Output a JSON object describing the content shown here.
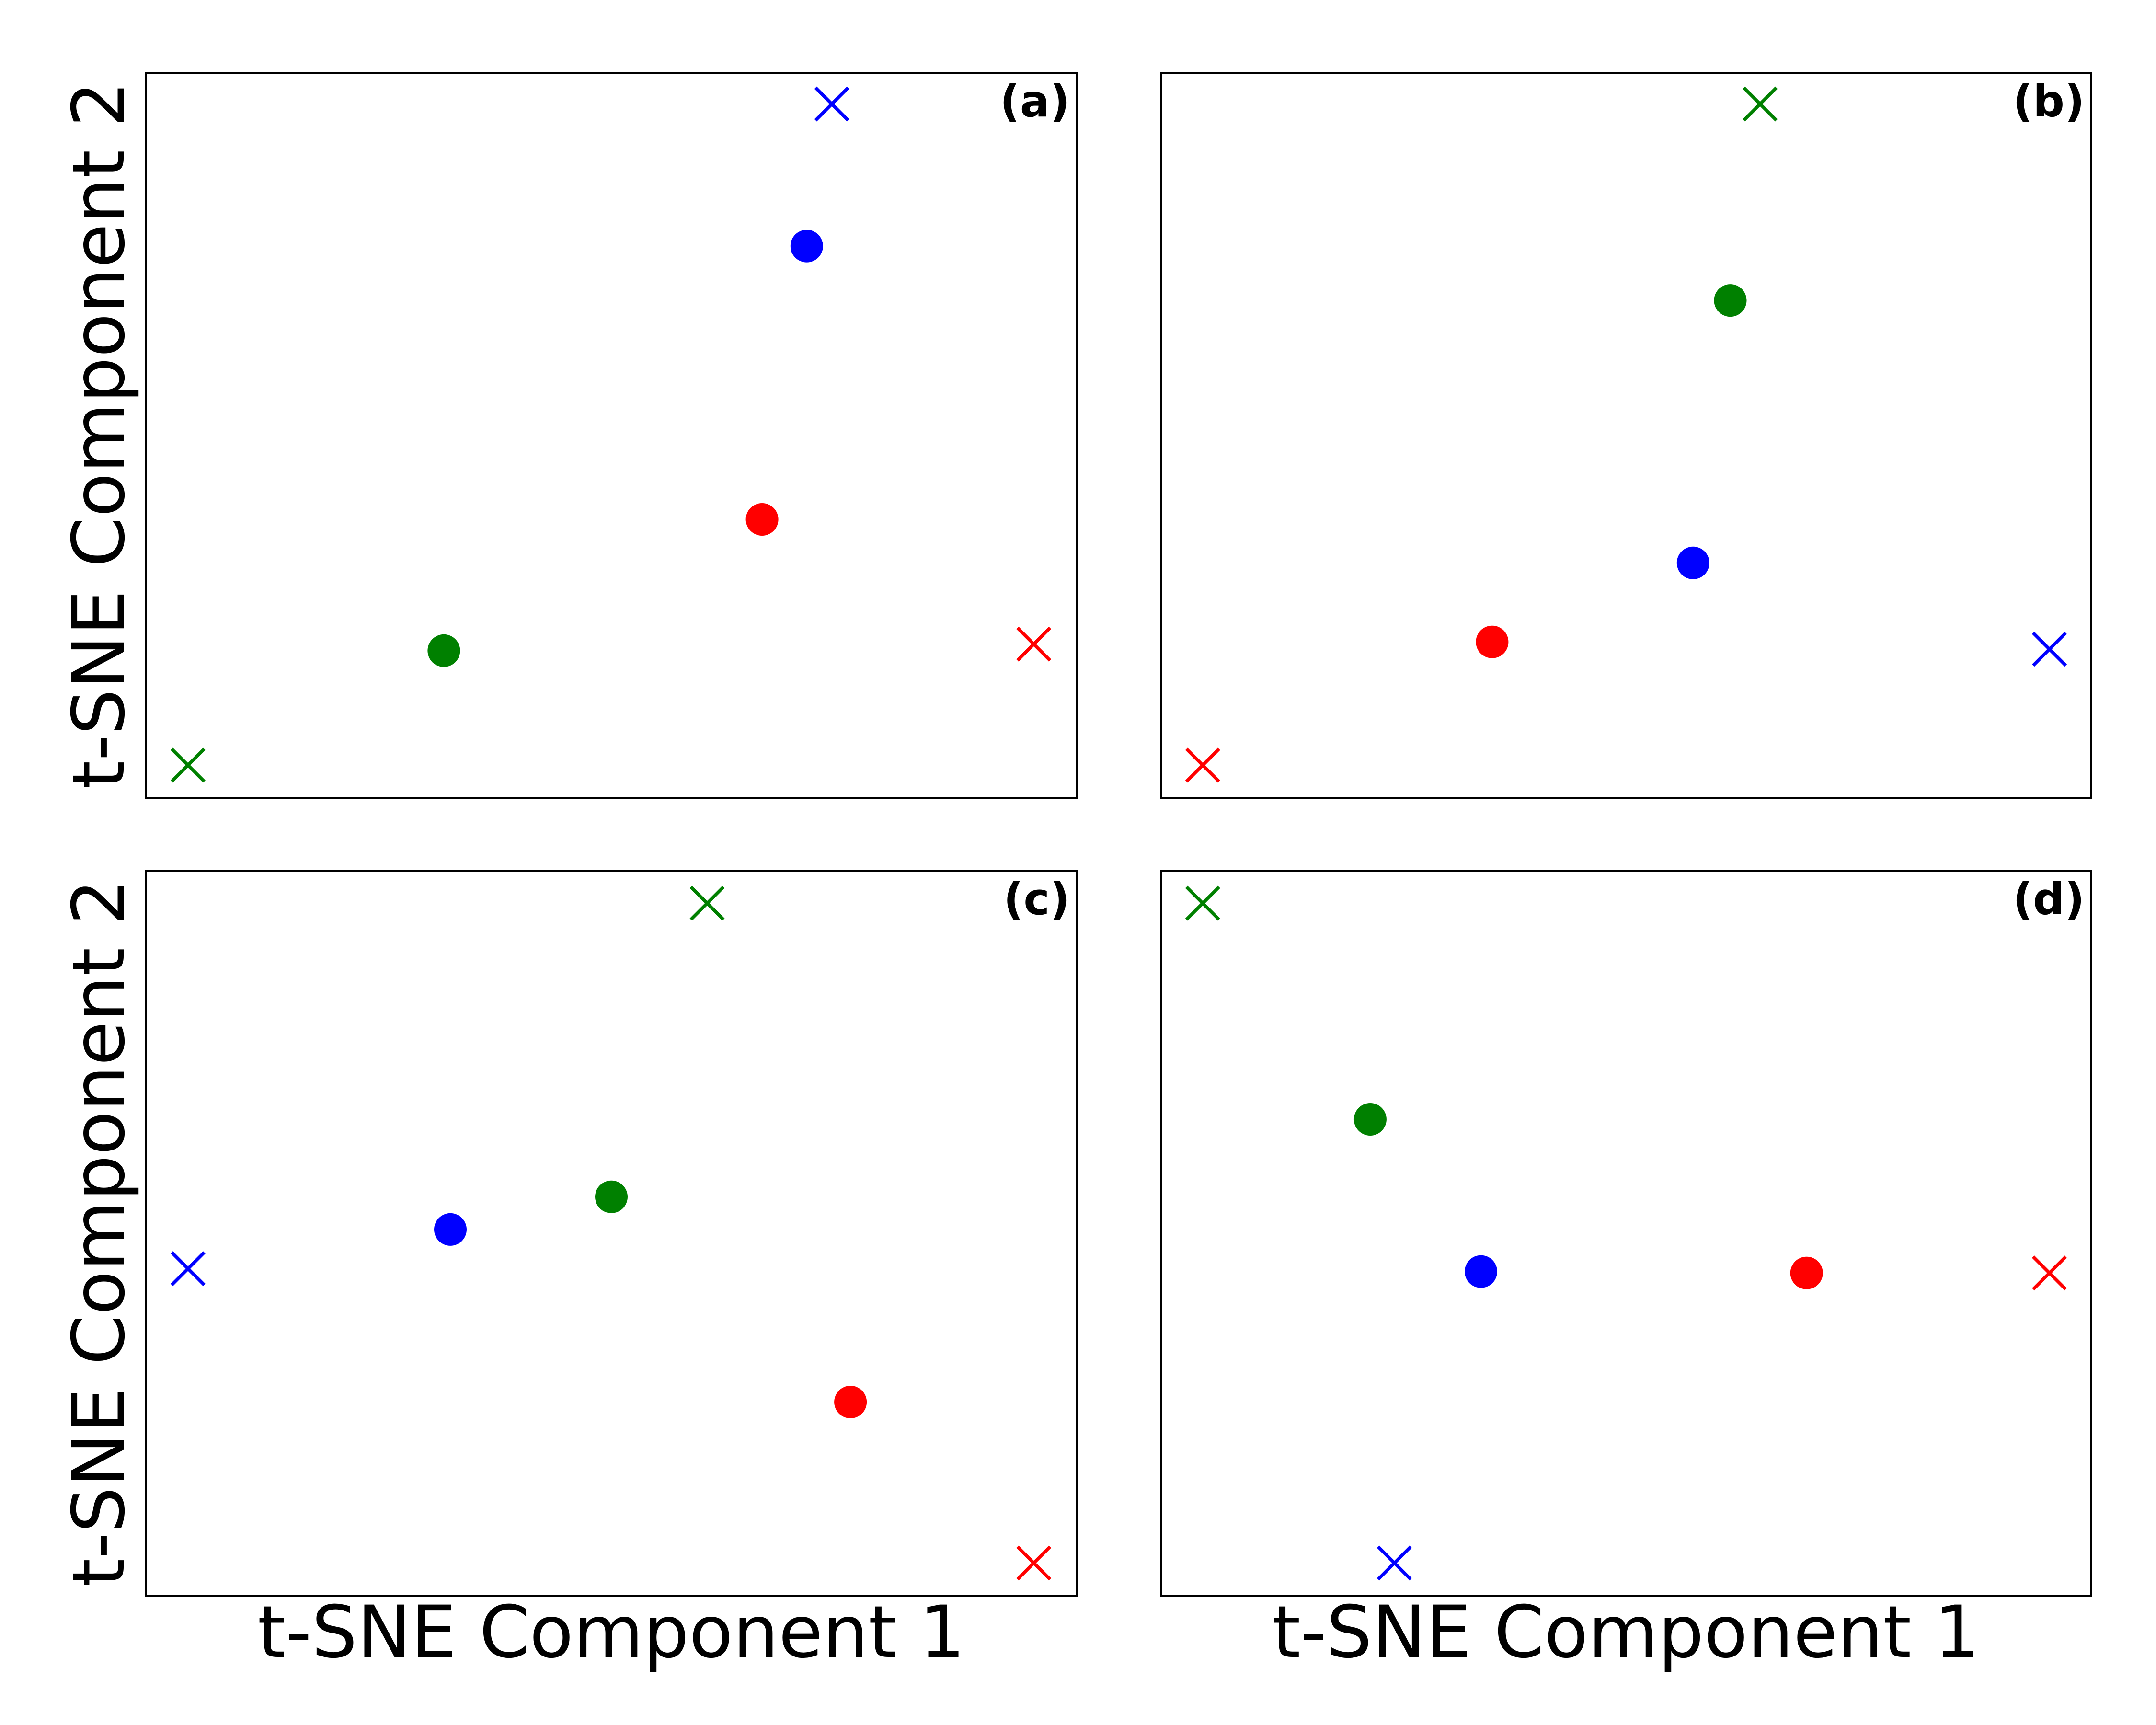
{
  "figure": {
    "ylabel": "t-SNE Component 2",
    "xlabel": "t-SNE Component 1"
  },
  "chart_data": [
    {
      "type": "scatter",
      "panel_label": "(a)",
      "xlabel": "",
      "ylabel": "t-SNE Component 2",
      "xlim": [
        0,
        1
      ],
      "ylim": [
        0,
        1
      ],
      "grid": false,
      "xticks": false,
      "yticks": false,
      "points": [
        {
          "marker": "x",
          "color": "#0000ff",
          "x": 0.737,
          "y": 0.957
        },
        {
          "marker": "circle",
          "color": "#0000ff",
          "x": 0.71,
          "y": 0.761
        },
        {
          "marker": "circle",
          "color": "#ff0000",
          "x": 0.662,
          "y": 0.384
        },
        {
          "marker": "x",
          "color": "#ff0000",
          "x": 0.954,
          "y": 0.212
        },
        {
          "marker": "circle",
          "color": "#008000",
          "x": 0.32,
          "y": 0.203
        },
        {
          "marker": "x",
          "color": "#008000",
          "x": 0.045,
          "y": 0.045
        }
      ]
    },
    {
      "type": "scatter",
      "panel_label": "(b)",
      "xlabel": "",
      "ylabel": "",
      "xlim": [
        0,
        1
      ],
      "ylim": [
        0,
        1
      ],
      "grid": false,
      "xticks": false,
      "yticks": false,
      "points": [
        {
          "marker": "x",
          "color": "#008000",
          "x": 0.644,
          "y": 0.957
        },
        {
          "marker": "circle",
          "color": "#008000",
          "x": 0.612,
          "y": 0.686
        },
        {
          "marker": "circle",
          "color": "#0000ff",
          "x": 0.572,
          "y": 0.324
        },
        {
          "marker": "circle",
          "color": "#ff0000",
          "x": 0.356,
          "y": 0.215
        },
        {
          "marker": "x",
          "color": "#0000ff",
          "x": 0.955,
          "y": 0.205
        },
        {
          "marker": "x",
          "color": "#ff0000",
          "x": 0.045,
          "y": 0.045
        }
      ]
    },
    {
      "type": "scatter",
      "panel_label": "(c)",
      "xlabel": "t-SNE Component 1",
      "ylabel": "t-SNE Component 2",
      "xlim": [
        0,
        1
      ],
      "ylim": [
        0,
        1
      ],
      "grid": false,
      "xticks": false,
      "yticks": false,
      "points": [
        {
          "marker": "x",
          "color": "#008000",
          "x": 0.603,
          "y": 0.955
        },
        {
          "marker": "circle",
          "color": "#008000",
          "x": 0.5,
          "y": 0.55
        },
        {
          "marker": "circle",
          "color": "#0000ff",
          "x": 0.327,
          "y": 0.505
        },
        {
          "marker": "x",
          "color": "#0000ff",
          "x": 0.045,
          "y": 0.451
        },
        {
          "marker": "circle",
          "color": "#ff0000",
          "x": 0.757,
          "y": 0.267
        },
        {
          "marker": "x",
          "color": "#ff0000",
          "x": 0.954,
          "y": 0.045
        }
      ]
    },
    {
      "type": "scatter",
      "panel_label": "(d)",
      "xlabel": "t-SNE Component 1",
      "ylabel": "",
      "xlim": [
        0,
        1
      ],
      "ylim": [
        0,
        1
      ],
      "grid": false,
      "xticks": false,
      "yticks": false,
      "points": [
        {
          "marker": "x",
          "color": "#008000",
          "x": 0.045,
          "y": 0.955
        },
        {
          "marker": "circle",
          "color": "#008000",
          "x": 0.225,
          "y": 0.657
        },
        {
          "marker": "circle",
          "color": "#0000ff",
          "x": 0.344,
          "y": 0.447
        },
        {
          "marker": "circle",
          "color": "#ff0000",
          "x": 0.694,
          "y": 0.445
        },
        {
          "marker": "x",
          "color": "#ff0000",
          "x": 0.955,
          "y": 0.445
        },
        {
          "marker": "x",
          "color": "#0000ff",
          "x": 0.251,
          "y": 0.045
        }
      ]
    }
  ]
}
